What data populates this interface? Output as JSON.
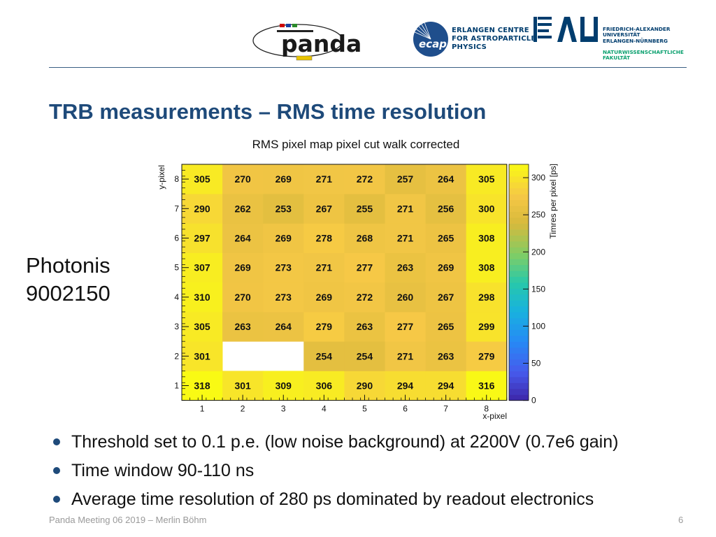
{
  "header": {
    "ecap_lines": [
      "ERLANGEN CENTRE",
      "FOR ASTROPARTICLE",
      "PHYSICS"
    ],
    "fau_lines": [
      "FRIEDRICH-ALEXANDER",
      "UNIVERSITÄT",
      "ERLANGEN-NÜRNBERG"
    ],
    "faculty_lines": [
      "NATURWISSENSCHAFTLICHE",
      "FAKULTÄT"
    ],
    "accent_color": "#1e4a7a"
  },
  "slide": {
    "title": "TRB measurements – RMS time resolution",
    "side_label_lines": [
      "Photonis",
      "9002150"
    ],
    "bullets": [
      "Threshold set to 0.1 p.e. (low noise background) at 2200V (0.7e6 gain)",
      "Time window 90-110 ns",
      "Average time resolution of 280 ps dominated by readout electronics"
    ],
    "footer": "Panda Meeting 06 2019 – Merlin Böhm",
    "page_number": "6"
  },
  "chart_data": {
    "type": "heatmap",
    "title": "RMS pixel map pixel cut walk corrected",
    "xlabel": "x-pixel",
    "ylabel": "y-pixel",
    "zlabel": "Timres per pixel  [ps]",
    "x": [
      1,
      2,
      3,
      4,
      5,
      6,
      7,
      8
    ],
    "y": [
      1,
      2,
      3,
      4,
      5,
      6,
      7,
      8
    ],
    "z_ticks": [
      0,
      50,
      100,
      150,
      200,
      250,
      300
    ],
    "zlim": [
      0,
      318
    ],
    "values": [
      [
        318,
        301,
        309,
        306,
        290,
        294,
        294,
        316
      ],
      [
        301,
        null,
        null,
        254,
        254,
        271,
        263,
        279
      ],
      [
        305,
        263,
        264,
        279,
        263,
        277,
        265,
        299
      ],
      [
        310,
        270,
        273,
        269,
        272,
        260,
        267,
        298
      ],
      [
        307,
        269,
        273,
        271,
        277,
        263,
        269,
        308
      ],
      [
        297,
        264,
        269,
        278,
        268,
        271,
        265,
        308
      ],
      [
        290,
        262,
        253,
        267,
        255,
        271,
        256,
        300
      ],
      [
        305,
        270,
        269,
        271,
        272,
        257,
        264,
        305
      ]
    ]
  }
}
